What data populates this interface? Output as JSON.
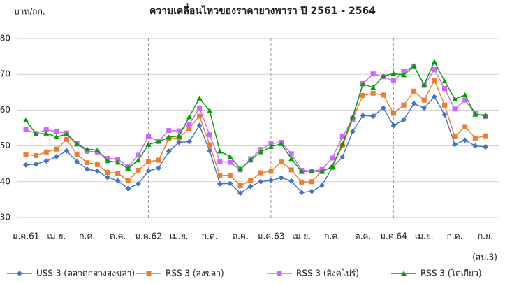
{
  "chart_data": {
    "type": "line",
    "title": "ความเคลื่อนไหวของราคายางพารา ปี 2561 - 2564",
    "y_label": "บาท/กก.",
    "note": "(สป.3)",
    "categories": [
      "ม.ค.61",
      null,
      null,
      "เม.ย.",
      null,
      null,
      "ก.ค.",
      null,
      null,
      "ต.ค.",
      null,
      null,
      "ม.ค.62",
      null,
      null,
      "เม.ย.",
      null,
      null,
      "ก.ค.",
      null,
      null,
      "ต.ค.",
      null,
      null,
      "ม.ค.63",
      null,
      null,
      "เม.ย.",
      null,
      null,
      "ก.ค.",
      null,
      null,
      "ต.ค.",
      null,
      null,
      "ม.ค.64",
      null,
      null,
      "เม.ย.",
      null,
      null,
      "ก.ค.",
      null,
      null,
      "ก.ย."
    ],
    "ylim": [
      30,
      80
    ],
    "yticks": [
      30,
      40,
      50,
      60,
      70,
      80
    ],
    "grid": true,
    "series": [
      {
        "name": "USS 3 (ตลาดกลางสงขลา)",
        "color": "#4472c4",
        "marker": "diamond",
        "values": [
          44.7,
          44.9,
          45.8,
          47.0,
          48.6,
          45.6,
          43.5,
          43.0,
          41.2,
          40.3,
          38.1,
          39.4,
          43.0,
          43.8,
          48.5,
          51.0,
          51.2,
          55.7,
          48.6,
          39.4,
          39.5,
          36.8,
          38.7,
          40.0,
          40.4,
          41.1,
          40.2,
          37.0,
          37.3,
          39.0,
          43.9,
          46.9,
          54.0,
          58.5,
          58.3,
          60.6,
          55.7,
          57.3,
          61.8,
          60.6,
          63.7,
          58.7,
          50.4,
          51.6,
          50.0,
          49.7
        ]
      },
      {
        "name": "RSS 3 (สงขลา)",
        "color": "#ed7d31",
        "marker": "square",
        "values": [
          47.6,
          47.3,
          48.3,
          49.1,
          51.8,
          47.7,
          45.3,
          44.8,
          42.6,
          42.4,
          40.3,
          43.2,
          45.6,
          46.0,
          52.0,
          52.3,
          54.9,
          58.3,
          50.3,
          41.7,
          41.8,
          38.9,
          40.3,
          42.5,
          42.9,
          45.5,
          43.3,
          39.9,
          40.0,
          43.1,
          44.0,
          50.0,
          57.4,
          64.1,
          64.7,
          64.2,
          59.1,
          61.4,
          65.3,
          62.8,
          68.3,
          61.4,
          52.6,
          55.4,
          52.2,
          52.8
        ]
      },
      {
        "name": "RSS 3 (สิงคโปร์)",
        "color": "#cc66ff",
        "marker": "square",
        "values": [
          54.5,
          53.5,
          54.5,
          54.0,
          53.6,
          50.6,
          48.5,
          48.3,
          46.5,
          46.3,
          44.2,
          47.4,
          52.6,
          51.3,
          54.3,
          54.2,
          56.0,
          60.6,
          53.1,
          45.6,
          45.4,
          43.3,
          46.4,
          49.0,
          50.6,
          51.0,
          47.8,
          43.2,
          43.0,
          43.4,
          46.6,
          52.6,
          57.6,
          67.4,
          70.1,
          69.3,
          68.2,
          70.8,
          72.3,
          66.9,
          71.3,
          66.0,
          60.3,
          62.8,
          59.0,
          58.2
        ]
      },
      {
        "name": "RSS 3 (โตเกียว)",
        "color": "#00a000",
        "marker": "triangle",
        "values": [
          57.2,
          53.3,
          53.5,
          52.5,
          53.3,
          50.5,
          49.1,
          48.8,
          45.8,
          45.4,
          43.7,
          46.0,
          50.4,
          51.2,
          52.4,
          52.8,
          58.1,
          63.3,
          59.8,
          48.5,
          47.0,
          43.6,
          46.0,
          48.3,
          49.8,
          50.6,
          46.4,
          42.8,
          43.0,
          42.8,
          44.3,
          50.5,
          58.1,
          67.3,
          66.3,
          69.5,
          70.2,
          69.8,
          72.3,
          67.1,
          73.5,
          68.1,
          63.1,
          64.2,
          58.8,
          58.6
        ]
      }
    ]
  }
}
